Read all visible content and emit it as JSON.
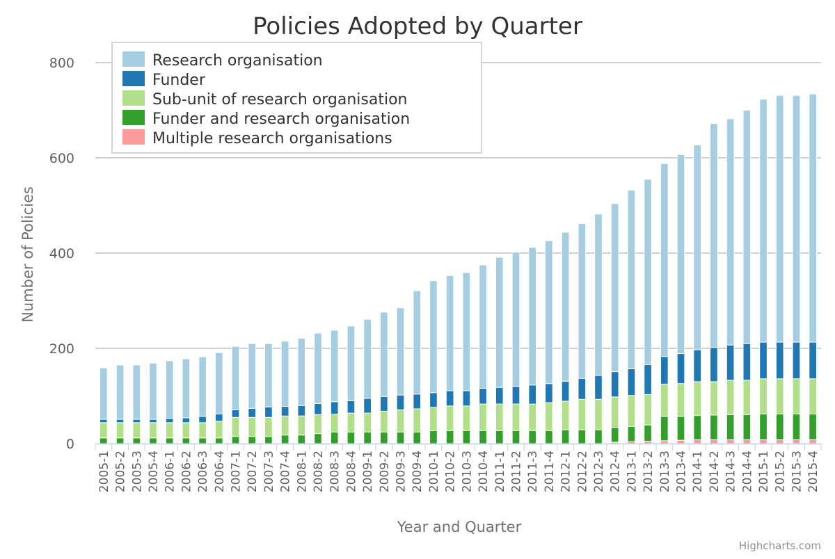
{
  "chart_data": {
    "type": "bar",
    "stacked": true,
    "title": "Policies Adopted by Quarter",
    "xlabel": "Year and Quarter",
    "ylabel": "Number of Policies",
    "ylim": [
      0,
      800
    ],
    "yticks": [
      0,
      200,
      400,
      600,
      800
    ],
    "grid": true,
    "legend_placement": "top-left",
    "credits": "Highcharts.com",
    "categories": [
      "2005-1",
      "2005-2",
      "2005-3",
      "2005-4",
      "2006-1",
      "2006-2",
      "2006-3",
      "2006-4",
      "2007-1",
      "2007-2",
      "2007-3",
      "2007-4",
      "2008-1",
      "2008-2",
      "2008-3",
      "2008-4",
      "2009-1",
      "2009-2",
      "2009-3",
      "2009-4",
      "2010-1",
      "2010-2",
      "2010-3",
      "2010-4",
      "2011-1",
      "2011-2",
      "2011-3",
      "2011-4",
      "2012-1",
      "2012-2",
      "2012-3",
      "2012-4",
      "2013-1",
      "2013-2",
      "2013-3",
      "2013-4",
      "2014-1",
      "2014-2",
      "2014-3",
      "2014-4",
      "2015-1",
      "2015-2",
      "2015-3",
      "2015-4"
    ],
    "xtick_labels": [
      "2005-1",
      "2005-2",
      "2005-3",
      "2005-4",
      "2006-1",
      "2006-2",
      "2006-3",
      "2006-4",
      "2007-1",
      "2007-2",
      "2007-3",
      "2007-4",
      "2008-1",
      "2008-2",
      "2008-3",
      "2008-4",
      "2009-1",
      "2009-2",
      "2009-3",
      "2009-4",
      "2010-1",
      "2010-2",
      "2010-3",
      "2010-4",
      "2011-1",
      "2011-2",
      "2011-3",
      "2011-4",
      "2012-1",
      "2012-2",
      "2012-3",
      "2012-4",
      "2013-1",
      "2013-2",
      "2013-3",
      "2013-4",
      "2014-1",
      "2014-2",
      "2014-3",
      "2014-4",
      "2015-1",
      "2015-2",
      "2015-3",
      "2015-4"
    ],
    "series": [
      {
        "name": "Multiple research organisations",
        "color": "#fb9a99",
        "values": [
          0,
          0,
          0,
          0,
          0,
          0,
          0,
          0,
          0,
          0,
          0,
          0,
          0,
          0,
          0,
          0,
          0,
          0,
          0,
          0,
          0,
          0,
          0,
          0,
          0,
          0,
          0,
          0,
          0,
          0,
          0,
          3,
          4,
          5,
          6,
          7,
          8,
          8,
          8,
          8,
          8,
          8,
          8,
          8
        ]
      },
      {
        "name": "Funder and research organisation",
        "color": "#33a02c",
        "values": [
          12,
          12,
          12,
          12,
          12,
          12,
          12,
          12,
          15,
          15,
          15,
          18,
          18,
          21,
          24,
          24,
          24,
          24,
          24,
          24,
          27,
          27,
          27,
          27,
          27,
          27,
          27,
          27,
          29,
          29,
          29,
          31,
          32,
          34,
          51,
          50,
          51,
          52,
          53,
          53,
          54,
          54,
          54,
          54
        ]
      },
      {
        "name": "Sub-unit of research organisation",
        "color": "#b2df8a",
        "values": [
          32,
          32,
          32,
          32,
          32,
          32,
          32,
          35,
          40,
          40,
          40,
          40,
          40,
          40,
          38,
          40,
          40,
          44,
          47,
          49,
          49,
          52,
          52,
          56,
          56,
          56,
          56,
          59,
          60,
          64,
          64,
          64,
          65,
          64,
          68,
          69,
          71,
          70,
          72,
          72,
          74,
          74,
          74,
          74
        ]
      },
      {
        "name": "Funder",
        "color": "#1f78b4",
        "values": [
          7,
          7,
          7,
          7,
          9,
          10,
          13,
          15,
          16,
          19,
          22,
          20,
          22,
          23,
          26,
          26,
          31,
          31,
          31,
          31,
          31,
          32,
          32,
          33,
          35,
          37,
          40,
          40,
          42,
          44,
          50,
          53,
          56,
          63,
          58,
          63,
          67,
          72,
          74,
          77,
          77,
          77,
          77,
          77
        ]
      },
      {
        "name": "Research organisation",
        "color": "#a6cee3",
        "values": [
          108,
          114,
          114,
          118,
          121,
          124,
          125,
          129,
          133,
          136,
          133,
          137,
          141,
          148,
          150,
          157,
          166,
          177,
          183,
          217,
          235,
          242,
          248,
          259,
          273,
          282,
          289,
          300,
          313,
          325,
          339,
          353,
          375,
          389,
          405,
          418,
          430,
          470,
          475,
          490,
          510,
          518,
          518,
          521
        ]
      }
    ]
  }
}
